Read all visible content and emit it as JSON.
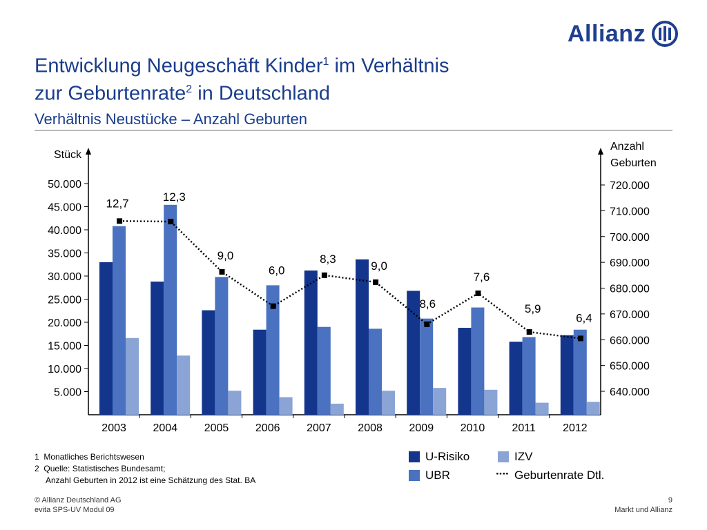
{
  "brand": {
    "name": "Allianz"
  },
  "header": {
    "title_line1_main": "Entwicklung Neugeschäft Kinder",
    "title_line1_sup": "1",
    "title_line1_rest": " im Verhältnis",
    "title_line2_main": "zur Geburtenrate",
    "title_line2_sup": "2",
    "title_line2_rest": " in Deutschland",
    "subtitle": "Verhältnis Neustücke – Anzahl Geburten"
  },
  "chart_data": {
    "type": "bar",
    "categories": [
      "2003",
      "2004",
      "2005",
      "2006",
      "2007",
      "2008",
      "2009",
      "2010",
      "2011",
      "2012"
    ],
    "series": [
      {
        "name": "U-Risiko",
        "values": [
          33000,
          28800,
          22600,
          18400,
          31200,
          33600,
          26800,
          18800,
          15800,
          17200
        ]
      },
      {
        "name": "UBR",
        "values": [
          40800,
          45400,
          29800,
          28000,
          19000,
          18600,
          20800,
          23200,
          16800,
          18400
        ]
      },
      {
        "name": "IZV",
        "values": [
          16600,
          12800,
          5200,
          3800,
          2400,
          5200,
          5800,
          5400,
          2600,
          2800
        ]
      }
    ],
    "line_series": {
      "name": "Geburtenrate Dtl.",
      "values": [
        706000,
        705800,
        686300,
        673000,
        685000,
        682300,
        666000,
        678000,
        663000,
        660500
      ],
      "labels": [
        "12,7",
        "12,3",
        "9,0",
        "6,0",
        "8,3",
        "9,0",
        "8,6",
        "7,6",
        "5,9",
        "6,4"
      ]
    },
    "y_left": {
      "label": "Stück",
      "ticks": [
        "5.000",
        "10.000",
        "15.000",
        "20.000",
        "25.000",
        "30.000",
        "35.000",
        "40.000",
        "45.000",
        "50.000"
      ],
      "tick_values": [
        5000,
        10000,
        15000,
        20000,
        25000,
        30000,
        35000,
        40000,
        45000,
        50000
      ],
      "range": [
        0,
        50000
      ]
    },
    "y_right": {
      "label_line1": "Anzahl",
      "label_line2": "Geburten",
      "ticks": [
        "640.000",
        "650.000",
        "660.000",
        "670.000",
        "680.000",
        "690.000",
        "700.000",
        "710.000",
        "720.000"
      ],
      "tick_values": [
        640000,
        650000,
        660000,
        670000,
        680000,
        690000,
        700000,
        710000,
        720000
      ],
      "range": [
        640000,
        720000
      ]
    },
    "colors": {
      "U-Risiko": "#14358c",
      "UBR": "#4a72c0",
      "IZV": "#8aa4d6",
      "line": "#000000"
    },
    "legend_position": "bottom-right",
    "grid": false
  },
  "legend": {
    "u_risiko": "U-Risiko",
    "ubr": "UBR",
    "izv": "IZV",
    "geburtenrate": "Geburtenrate Dtl.",
    "dots": "····"
  },
  "footnotes": {
    "f1_num": "1",
    "f1_text": "Monatliches Berichtswesen",
    "f2_num": "2",
    "f2_text": "Quelle: Statistisches Bundesamt;",
    "f2_text2": "Anzahl Geburten in 2012 ist eine Schätzung des Stat. BA"
  },
  "footer": {
    "copyright": "© Allianz Deutschland AG",
    "module": "evita SPS-UV Modul 09",
    "page": "9",
    "section": "Markt und Allianz"
  }
}
